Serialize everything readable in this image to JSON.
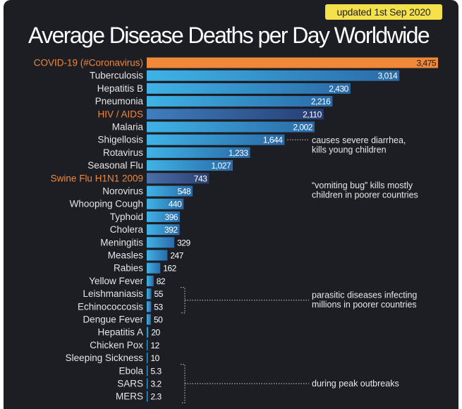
{
  "badge": "updated 1st Sep 2020",
  "colors": {
    "background": "#1d1d24",
    "bar_highlight": "#f0883a",
    "label_highlight": "#f0883a",
    "label_default": "#e6e6e6",
    "bar_gradient_light": "#3fb3e6",
    "bar_gradient_dark": "#2a6aa8",
    "bar_hiv_light": "#3f7fc0",
    "bar_hiv_dark": "#263c72",
    "bar_swine_light": "#4a6fa8",
    "bar_swine_dark": "#2c3f70"
  },
  "chart_data": {
    "type": "bar",
    "orientation": "horizontal",
    "title": "Average Disease Deaths per Day Worldwide",
    "xlim": [
      0,
      3475
    ],
    "grid": false,
    "categories": [
      "COVID-19 (#Coronavirus)",
      "Tuberculosis",
      "Hepatitis B",
      "Pneumonia",
      "HIV / AIDS",
      "Malaria",
      "Shigellosis",
      "Rotavirus",
      "Seasonal Flu",
      "Swine Flu H1N1 2009",
      "Norovirus",
      "Whooping Cough",
      "Typhoid",
      "Cholera",
      "Meningitis",
      "Measles",
      "Rabies",
      "Yellow Fever",
      "Leishmaniasis",
      "Echinococcosis",
      "Dengue Fever",
      "Hepatitis A",
      "Chicken Pox",
      "Sleeping Sickness",
      "Ebola",
      "SARS",
      "MERS"
    ],
    "values": [
      3475,
      3014,
      2430,
      2216,
      2110,
      2002,
      1644,
      1233,
      1027,
      743,
      548,
      440,
      396,
      392,
      329,
      247,
      162,
      82,
      55,
      53,
      50,
      20,
      12,
      10,
      5.3,
      3.2,
      2.3
    ],
    "value_labels": [
      "3,475",
      "3,014",
      "2,430",
      "2,216",
      "2,110",
      "2,002",
      "1,644",
      "1,233",
      "1,027",
      "743",
      "548",
      "440",
      "396",
      "392",
      "329",
      "247",
      "162",
      "82",
      "55",
      "53",
      "50",
      "20",
      "12",
      "10",
      "5.3",
      "3.2",
      "2.3"
    ],
    "highlighted": [
      "COVID-19 (#Coronavirus)",
      "HIV / AIDS",
      "Swine Flu H1N1 2009"
    ],
    "annotations": [
      {
        "text": [
          "causes severe diarrhea,",
          "kills young children"
        ],
        "target": "Shigellosis"
      },
      {
        "text": [
          "“vomiting bug” kills mostly",
          "children in poorer countries"
        ],
        "target": "Norovirus"
      },
      {
        "text": [
          "parasitic diseases infecting",
          "millions in poorer countries"
        ],
        "targets": [
          "Leishmaniasis",
          "Echinococcosis"
        ]
      },
      {
        "text": [
          "during peak outbreaks"
        ],
        "targets": [
          "Ebola",
          "SARS",
          "MERS"
        ]
      }
    ]
  }
}
